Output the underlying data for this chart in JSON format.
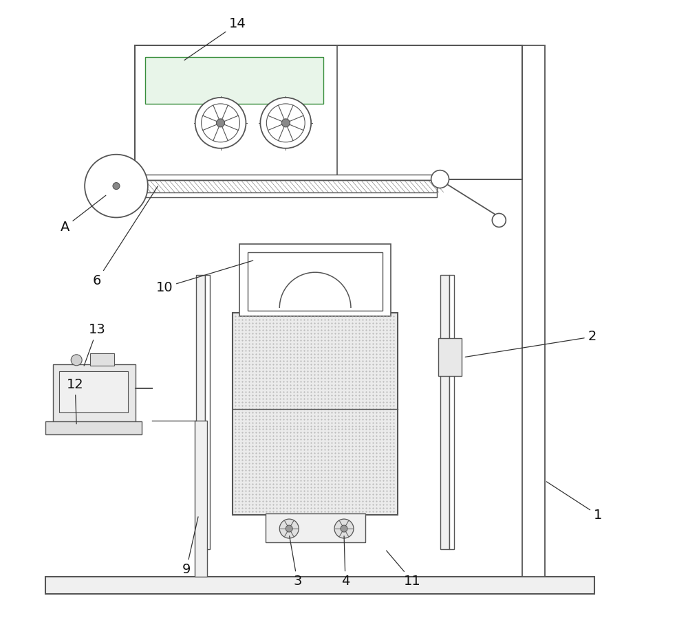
{
  "bg_color": "#ffffff",
  "lc": "#555555",
  "fig_width": 10.0,
  "fig_height": 9.18,
  "label_fontsize": 14
}
